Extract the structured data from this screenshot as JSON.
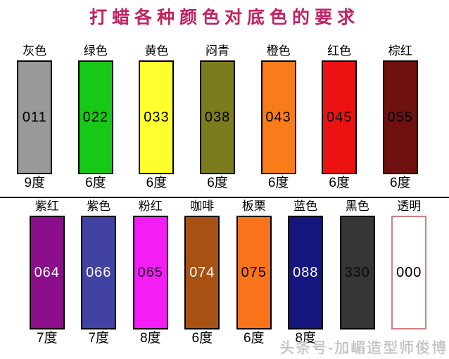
{
  "title": "打蜡各种颜色对底色的要求",
  "watermark": "头条号-加嵋造型师俊博",
  "theme": {
    "title_color": "#C22261",
    "divider_color": "#000000",
    "background": "#FFFFFF",
    "watermark_color": "#BFBFBF"
  },
  "rows": [
    {
      "name": "row-1",
      "columns": [
        {
          "label": "灰色",
          "code": "011",
          "degree": "9度",
          "fill": "#999999",
          "code_color": "#000000",
          "border": "#000000"
        },
        {
          "label": "绿色",
          "code": "022",
          "degree": "6度",
          "fill": "#17C917",
          "code_color": "#000000",
          "border": "#000000"
        },
        {
          "label": "黄色",
          "code": "033",
          "degree": "6度",
          "fill": "#FFFF2E",
          "code_color": "#000000",
          "border": "#000000"
        },
        {
          "label": "闷青",
          "code": "038",
          "degree": "6度",
          "fill": "#7C7C1E",
          "code_color": "#000000",
          "border": "#000000"
        },
        {
          "label": "橙色",
          "code": "043",
          "degree": "6度",
          "fill": "#F87D1A",
          "code_color": "#000000",
          "border": "#000000"
        },
        {
          "label": "红色",
          "code": "045",
          "degree": "6度",
          "fill": "#ED1212",
          "code_color": "#000000",
          "border": "#000000"
        },
        {
          "label": "棕红",
          "code": "055",
          "degree": "6度",
          "fill": "#6F1111",
          "code_color": "#000000",
          "border": "#000000"
        }
      ]
    },
    {
      "name": "row-2",
      "columns": [
        {
          "label": "紫红",
          "code": "064",
          "degree": "7度",
          "fill": "#8B0E8B",
          "code_color": "#FFFFFF",
          "border": "#000000"
        },
        {
          "label": "紫色",
          "code": "066",
          "degree": "7度",
          "fill": "#4242A2",
          "code_color": "#FFFFFF",
          "border": "#000000"
        },
        {
          "label": "粉红",
          "code": "065",
          "degree": "8度",
          "fill": "#F51DF5",
          "code_color": "#1A001A",
          "border": "#000000"
        },
        {
          "label": "咖啡",
          "code": "074",
          "degree": "6度",
          "fill": "#A75113",
          "code_color": "#FFFFFF",
          "border": "#000000"
        },
        {
          "label": "板栗",
          "code": "075",
          "degree": "6度",
          "fill": "#F8731A",
          "code_color": "#000000",
          "border": "#000000"
        },
        {
          "label": "蓝色",
          "code": "088",
          "degree": "8度",
          "fill": "#15157E",
          "code_color": "#FFFFFF",
          "border": "#000000"
        },
        {
          "label": "黑色",
          "code": "330",
          "degree": "",
          "fill": "#363636",
          "code_color": "#0A0A0A",
          "border": "#000000"
        },
        {
          "label": "透明",
          "code": "000",
          "degree": "",
          "fill": "#FFFFFF",
          "code_color": "#000000",
          "border": "#D08080"
        }
      ]
    }
  ]
}
